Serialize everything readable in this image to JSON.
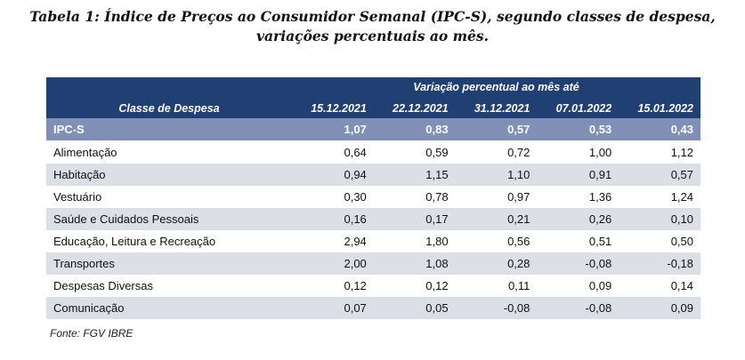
{
  "title": {
    "line1": "Tabela 1: Índice de Preços ao Consumidor Semanal (IPC-S), segundo classes de despesa,",
    "line2": "variações percentuais ao mês."
  },
  "table": {
    "group_header": "Variação percentual ao mês até",
    "class_header": "Classe de Despesa",
    "dates": [
      "15.12.2021",
      "22.12.2021",
      "31.12.2021",
      "07.01.2022",
      "15.01.2022"
    ],
    "ipcs": {
      "label": "IPC-S",
      "values": [
        "1,07",
        "0,83",
        "0,57",
        "0,53",
        "0,43"
      ]
    },
    "rows": [
      {
        "label": "Alimentação",
        "values": [
          "0,64",
          "0,59",
          "0,72",
          "1,00",
          "1,12"
        ]
      },
      {
        "label": "Habitação",
        "values": [
          "0,94",
          "1,15",
          "1,10",
          "0,91",
          "0,57"
        ]
      },
      {
        "label": "Vestuário",
        "values": [
          "0,30",
          "0,78",
          "0,97",
          "1,36",
          "1,24"
        ]
      },
      {
        "label": "Saúde e Cuidados Pessoais",
        "values": [
          "0,16",
          "0,17",
          "0,21",
          "0,26",
          "0,10"
        ]
      },
      {
        "label": "Educação, Leitura e Recreação",
        "values": [
          "2,94",
          "1,80",
          "0,56",
          "0,51",
          "0,50"
        ]
      },
      {
        "label": "Transportes",
        "values": [
          "2,00",
          "1,08",
          "0,28",
          "-0,08",
          "-0,18"
        ]
      },
      {
        "label": "Despesas Diversas",
        "values": [
          "0,12",
          "0,12",
          "0,11",
          "0,09",
          "0,14"
        ]
      },
      {
        "label": "Comunicação",
        "values": [
          "0,07",
          "0,05",
          "-0,08",
          "-0,08",
          "0,09"
        ]
      }
    ]
  },
  "source": "Fonte: FGV IBRE",
  "colors": {
    "header": "#203f73",
    "ipcs_row": "#7f8fb5",
    "band": "#dcdfe6"
  }
}
